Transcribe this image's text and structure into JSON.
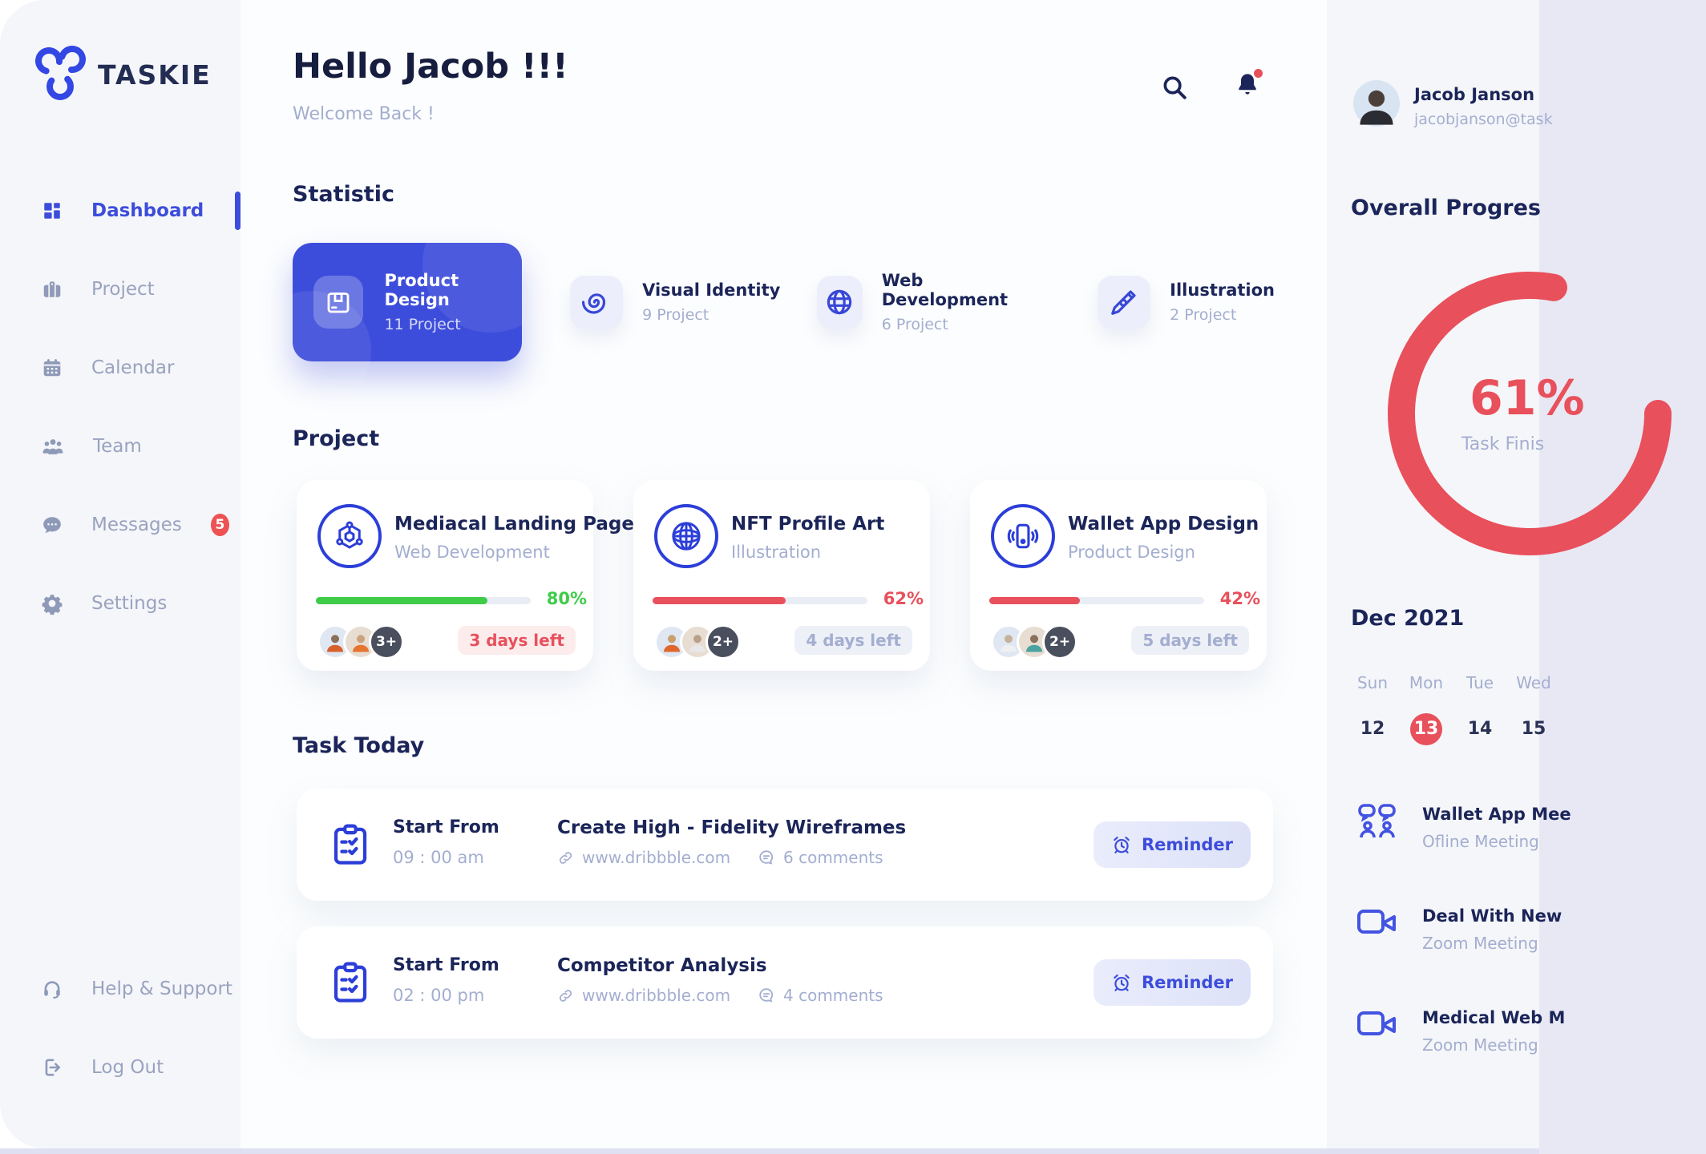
{
  "app": {
    "brand": "TASKIE"
  },
  "colors": {
    "primary": "#3d4ddb",
    "navy": "#1b2559",
    "muted": "#a3aed0",
    "sidebartext": "#99a3c0",
    "red": "#e8505b",
    "redbg": "#fdecec",
    "green": "#3ecc49",
    "pillbg": "#edf0f7",
    "panel": "#f5f6f9",
    "track": "#e9edf5",
    "badge": "#ee5253",
    "strip": "#dfe0f2",
    "tile": "#eceffb",
    "remA": "#e9ecfb",
    "remB": "#dde2f8"
  },
  "sidebar": {
    "items": [
      {
        "label": "Dashboard",
        "icon": "dashboard",
        "active": true
      },
      {
        "label": "Project",
        "icon": "briefcase"
      },
      {
        "label": "Calendar",
        "icon": "calendar"
      },
      {
        "label": "Team",
        "icon": "team"
      },
      {
        "label": "Messages",
        "icon": "message",
        "badge": "5"
      },
      {
        "label": "Settings",
        "icon": "gear"
      }
    ],
    "footer_items": [
      {
        "label": "Help & Support",
        "icon": "headset"
      },
      {
        "label": "Log Out",
        "icon": "logout"
      }
    ]
  },
  "header": {
    "greeting": "Hello Jacob !!!",
    "subtitle": "Welcome Back !"
  },
  "statistic": {
    "title": "Statistic",
    "cards": [
      {
        "title": "Product Design",
        "count": "11 Project",
        "icon": "package",
        "active": true
      },
      {
        "title": "Visual Identity",
        "count": "9 Project",
        "icon": "swirl"
      },
      {
        "title": "Web Development",
        "count": "6 Project",
        "icon": "globe"
      },
      {
        "title": "Illustration",
        "count": "2 Project",
        "icon": "pen-tool"
      }
    ]
  },
  "projects": {
    "title": "Project",
    "cards": [
      {
        "name": "Mediacal Landing Page",
        "category": "Web Development",
        "icon": "cube-network",
        "progress": 80,
        "progress_label": "80%",
        "progress_color": "#3ecc49",
        "extra_avatars": "3+",
        "days_left": "3 days left",
        "days_left_style": "red"
      },
      {
        "name": "NFT Profile Art",
        "category": "Illustration",
        "icon": "globe",
        "progress": 62,
        "progress_label": "62%",
        "progress_color": "#e8505b",
        "extra_avatars": "2+",
        "days_left": "4 days left",
        "days_left_style": "gray"
      },
      {
        "name": "Wallet App Design",
        "category": "Product Design",
        "icon": "phone-vibrate",
        "progress": 42,
        "progress_label": "42%",
        "progress_color": "#e8505b",
        "extra_avatars": "2+",
        "days_left": "5 days left",
        "days_left_style": "gray"
      }
    ]
  },
  "tasks": {
    "title": "Task Today",
    "items": [
      {
        "start_label": "Start From",
        "time": "09 : 00 am",
        "name": "Create High - Fidelity Wireframes",
        "link": "www.dribbble.com",
        "comments": "6 comments",
        "action": "Reminder"
      },
      {
        "start_label": "Start From",
        "time": "02 : 00 pm",
        "name": "Competitor Analysis",
        "link": "www.dribbble.com",
        "comments": "4 comments",
        "action": "Reminder"
      }
    ]
  },
  "profile": {
    "name": "Jacob Janson",
    "email": "jacobjanson@task"
  },
  "overall": {
    "title": "Overall Progres",
    "percent": "61%",
    "caption": "Task Finis",
    "progress": 61
  },
  "calendar": {
    "month": "Dec 2021",
    "weekdays": [
      "Sun",
      "Mon",
      "Tue",
      "Wed"
    ],
    "dates": [
      "12",
      "13",
      "14",
      "15"
    ],
    "active_date": "13"
  },
  "meetings": [
    {
      "title": "Wallet App Mee",
      "subtitle": "Ofline Meeting",
      "icon": "people-chat"
    },
    {
      "title": "Deal With New",
      "subtitle": "Zoom Meeting",
      "icon": "video-camera"
    },
    {
      "title": "Medical Web M",
      "subtitle": "Zoom Meeting",
      "icon": "video-camera"
    }
  ]
}
